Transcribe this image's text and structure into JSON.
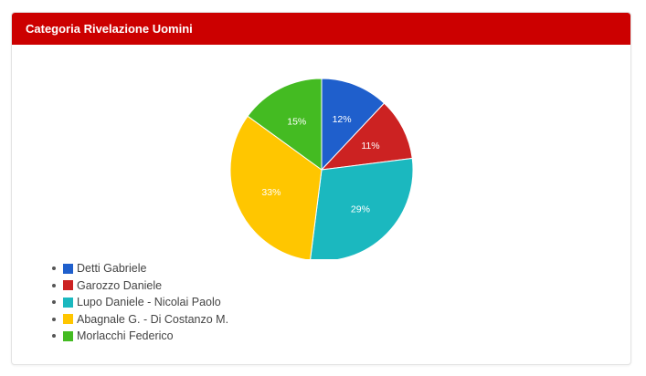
{
  "header": {
    "title": "Categoria Rivelazione Uomini"
  },
  "chart_data": {
    "type": "pie",
    "categories": [
      "Detti Gabriele",
      "Garozzo Daniele",
      "Lupo Daniele - Nicolai Paolo",
      "Abagnale G. - Di Costanzo M.",
      "Morlacchi Federico"
    ],
    "values": [
      12,
      11,
      29,
      33,
      15
    ],
    "labels": [
      "12%",
      "11%",
      "29%",
      "33%",
      "15%"
    ],
    "colors": [
      "#1f5fcc",
      "#cc2222",
      "#1bb8bf",
      "#ffc600",
      "#44bb22"
    ],
    "legend_position": "bottom-left"
  }
}
